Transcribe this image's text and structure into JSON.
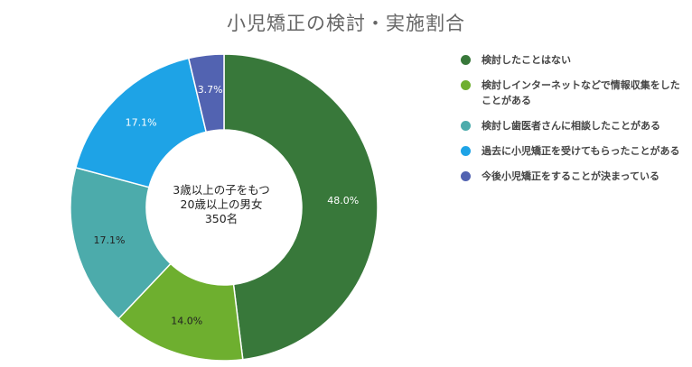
{
  "chart_data": {
    "type": "pie",
    "title": "小児矯正の検討・実施割合",
    "center_text": [
      "3歳以上の子をもつ",
      "20歳以上の男女",
      "350名"
    ],
    "legend_position": "right",
    "slices": [
      {
        "label": "検討したことはない",
        "value": 48.0,
        "display": "48.0%",
        "color": "#38783a"
      },
      {
        "label": "検討しインターネットなどで情報収集をしたことがある",
        "value": 14.0,
        "display": "14.0%",
        "color": "#6eaf2f"
      },
      {
        "label": "検討し歯医者さんに相談したことがある",
        "value": 17.1,
        "display": "17.1%",
        "color": "#4cabab"
      },
      {
        "label": "過去に小児矯正を受けてもらったことがある",
        "value": 17.1,
        "display": "17.1%",
        "color": "#1ea3e6"
      },
      {
        "label": "今後小児矯正をすることが決まっている",
        "value": 3.7,
        "display": "3.7%",
        "color": "#5263b1"
      }
    ]
  }
}
